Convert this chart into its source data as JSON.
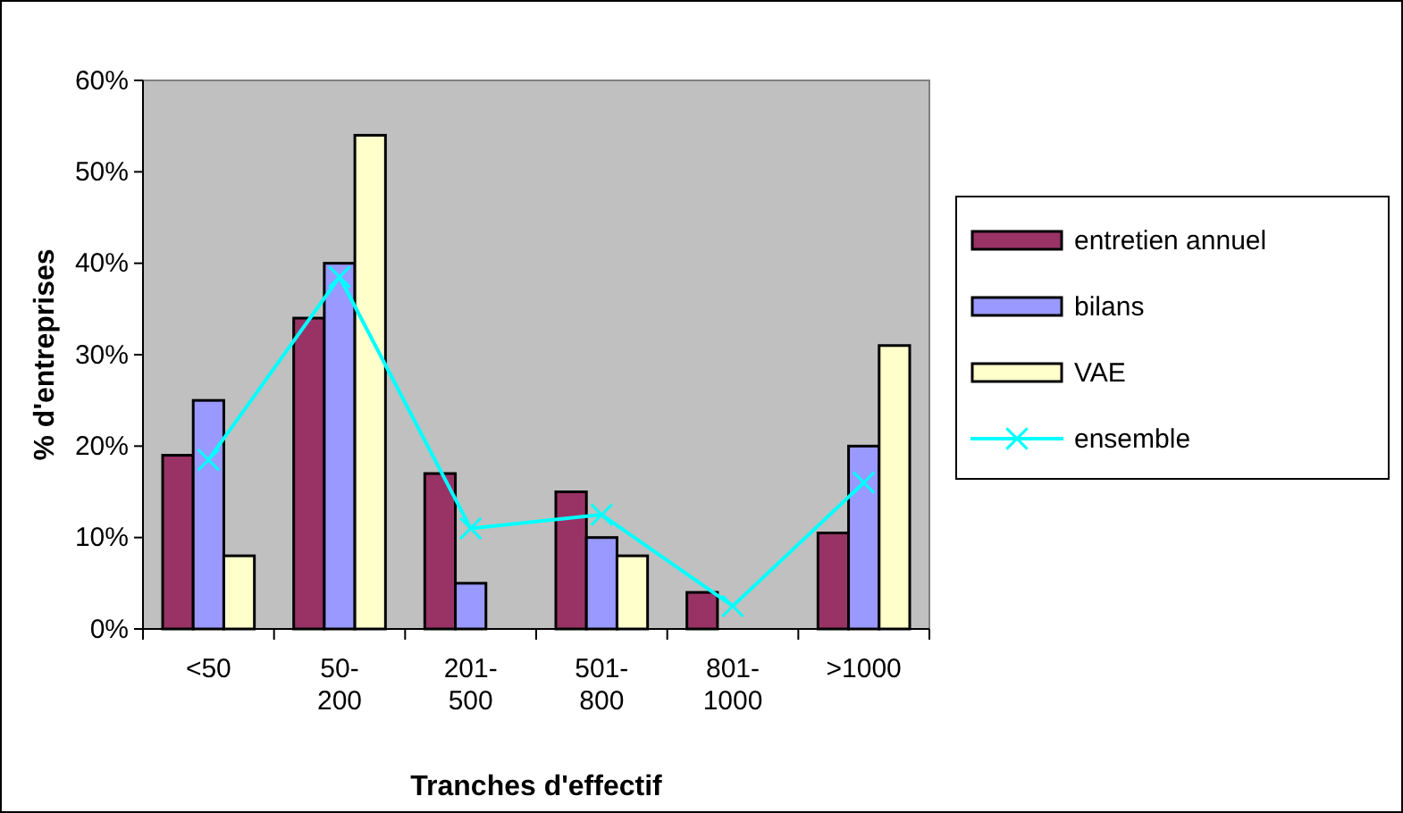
{
  "chart_data": {
    "type": "bar",
    "xlabel": "Tranches d'effectif",
    "ylabel": "% d'entreprises",
    "categories": [
      "<50",
      "50-200",
      "201-500",
      "501-800",
      "801-1000",
      ">1000"
    ],
    "series": [
      {
        "name": "entretien annuel",
        "color": "#993366",
        "values": [
          19,
          34,
          17,
          15,
          4,
          10.5
        ]
      },
      {
        "name": "bilans",
        "color": "#9999ff",
        "values": [
          25,
          40,
          5,
          10,
          null,
          20
        ]
      },
      {
        "name": "VAE",
        "color": "#ffffcc",
        "values": [
          8,
          54,
          null,
          8,
          null,
          31
        ]
      },
      {
        "name": "ensemble",
        "type": "line",
        "color": "#00ffff",
        "marker": "cross",
        "values": [
          18.5,
          38.5,
          11,
          12.5,
          2.5,
          16
        ]
      }
    ],
    "ylim": [
      0,
      60
    ],
    "yticks": [
      {
        "value": 0,
        "label": "0%"
      },
      {
        "value": 10,
        "label": "10%"
      },
      {
        "value": 20,
        "label": "20%"
      },
      {
        "value": 30,
        "label": "30%"
      },
      {
        "value": 40,
        "label": "40%"
      },
      {
        "value": 50,
        "label": "50%"
      },
      {
        "value": 60,
        "label": "60%"
      }
    ],
    "grid": false,
    "legend": "right"
  }
}
